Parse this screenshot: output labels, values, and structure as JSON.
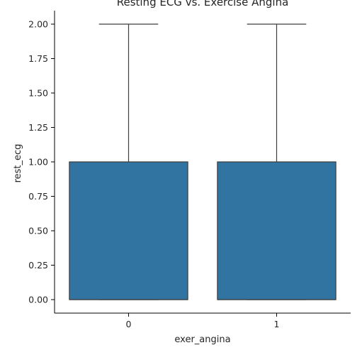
{
  "chart_data": {
    "type": "boxplot",
    "title": "Resting ECG vs. Exercise Angina",
    "xlabel": "exer_angina",
    "ylabel": "rest_ecg",
    "categories": [
      "0",
      "1"
    ],
    "boxes": [
      {
        "category": "0",
        "min": 0.0,
        "q1": 0.0,
        "median": 0.0,
        "q3": 1.0,
        "max": 2.0
      },
      {
        "category": "1",
        "min": 0.0,
        "q1": 0.0,
        "median": 0.0,
        "q3": 1.0,
        "max": 2.0
      }
    ],
    "yticks": [
      "0.00",
      "0.25",
      "0.50",
      "0.75",
      "1.00",
      "1.25",
      "1.50",
      "1.75",
      "2.00"
    ],
    "ylim": [
      -0.1,
      2.1
    ],
    "grid": false,
    "colors": {
      "box_fill": "#3274a1",
      "line": "#3d3d3d",
      "axis": "#000000"
    }
  }
}
